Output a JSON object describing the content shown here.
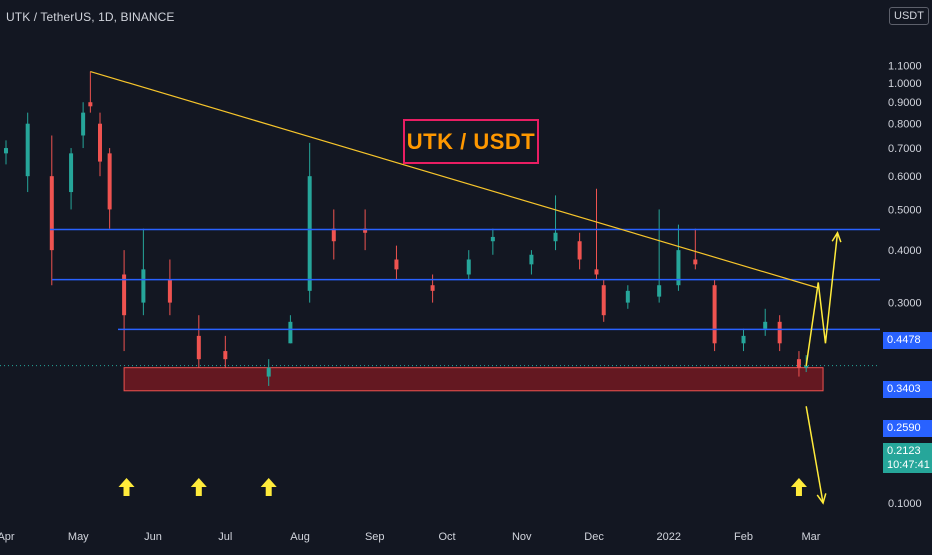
{
  "header": {
    "symbol_title": "UTK / TetherUS, 1D, BINANCE",
    "currency": "USDT"
  },
  "chart_data": {
    "type": "candlestick",
    "title": "UTK / USDT",
    "y_axis": {
      "scale": "log",
      "position": "right",
      "tick_labels": [
        "1.1000",
        "1.0000",
        "0.9000",
        "0.8000",
        "0.7000",
        "0.6000",
        "0.5000",
        "0.4000",
        "0.3000",
        "0.1000"
      ],
      "tick_values": [
        1.1,
        1.0,
        0.9,
        0.8,
        0.7,
        0.6,
        0.5,
        0.4,
        0.3,
        0.1
      ]
    },
    "x_axis": {
      "tick_labels": [
        "Apr",
        "May",
        "Jun",
        "Jul",
        "Aug",
        "Sep",
        "Oct",
        "Nov",
        "Dec",
        "2022",
        "Feb",
        "Mar"
      ],
      "tick_dates": [
        "2021-04-01",
        "2021-05-01",
        "2021-06-01",
        "2021-07-01",
        "2021-08-01",
        "2021-09-01",
        "2021-10-01",
        "2021-11-01",
        "2021-12-01",
        "2022-01-01",
        "2022-02-01",
        "2022-03-01"
      ]
    },
    "last_price": "0.2123",
    "countdown": "10:47:41",
    "colors": {
      "up": "#26a69a",
      "down": "#ef5350",
      "background": "#131722",
      "level_line": "#2962ff",
      "trendline": "#f7c52b",
      "support_zone": "#801922",
      "arrows": "#ffeb3b",
      "label_border": "#e91e63",
      "label_text": "#ff9800"
    },
    "horizontal_levels": [
      {
        "value": 0.4478,
        "label": "0.4478"
      },
      {
        "value": 0.3403,
        "label": "0.3403"
      },
      {
        "value": 0.259,
        "label": "0.2590"
      }
    ],
    "support_zone": {
      "top": 0.21,
      "bottom": 0.185,
      "from": "2021-05-20",
      "to": "2022-03-06"
    },
    "trendline": {
      "from": {
        "date": "2021-05-06",
        "price": 1.065
      },
      "to": {
        "date": "2022-03-04",
        "price": 0.325
      }
    },
    "up_arrow_dates": [
      "2021-05-21",
      "2021-06-20",
      "2021-07-19",
      "2022-02-24"
    ],
    "projection_path": [
      {
        "date": "2022-02-27",
        "price": 0.212
      },
      {
        "date": "2022-03-04",
        "price": 0.335
      },
      {
        "date": "2022-03-07",
        "price": 0.24
      },
      {
        "date": "2022-03-12",
        "price": 0.44
      }
    ],
    "down_projection": [
      {
        "date": "2022-02-27",
        "price": 0.17
      },
      {
        "date": "2022-03-06",
        "price": 0.1
      }
    ],
    "series": [
      {
        "date": "2021-04-01",
        "open": 0.68,
        "high": 0.73,
        "low": 0.64,
        "close": 0.7
      },
      {
        "date": "2021-04-10",
        "open": 0.6,
        "high": 0.85,
        "low": 0.55,
        "close": 0.8
      },
      {
        "date": "2021-04-20",
        "open": 0.6,
        "high": 0.75,
        "low": 0.33,
        "close": 0.4
      },
      {
        "date": "2021-04-28",
        "open": 0.55,
        "high": 0.7,
        "low": 0.5,
        "close": 0.68
      },
      {
        "date": "2021-05-03",
        "open": 0.75,
        "high": 0.9,
        "low": 0.7,
        "close": 0.85
      },
      {
        "date": "2021-05-06",
        "open": 0.9,
        "high": 1.065,
        "low": 0.85,
        "close": 0.88
      },
      {
        "date": "2021-05-10",
        "open": 0.8,
        "high": 0.85,
        "low": 0.6,
        "close": 0.65
      },
      {
        "date": "2021-05-14",
        "open": 0.68,
        "high": 0.7,
        "low": 0.45,
        "close": 0.5
      },
      {
        "date": "2021-05-20",
        "open": 0.35,
        "high": 0.4,
        "low": 0.23,
        "close": 0.28
      },
      {
        "date": "2021-05-28",
        "open": 0.3,
        "high": 0.45,
        "low": 0.28,
        "close": 0.36
      },
      {
        "date": "2021-06-08",
        "open": 0.34,
        "high": 0.38,
        "low": 0.28,
        "close": 0.3
      },
      {
        "date": "2021-06-20",
        "open": 0.25,
        "high": 0.28,
        "low": 0.21,
        "close": 0.22
      },
      {
        "date": "2021-07-01",
        "open": 0.23,
        "high": 0.25,
        "low": 0.21,
        "close": 0.22
      },
      {
        "date": "2021-07-19",
        "open": 0.2,
        "high": 0.22,
        "low": 0.19,
        "close": 0.21
      },
      {
        "date": "2021-07-28",
        "open": 0.24,
        "high": 0.28,
        "low": 0.24,
        "close": 0.27
      },
      {
        "date": "2021-08-05",
        "open": 0.32,
        "high": 0.72,
        "low": 0.3,
        "close": 0.6
      },
      {
        "date": "2021-08-15",
        "open": 0.45,
        "high": 0.5,
        "low": 0.38,
        "close": 0.42
      },
      {
        "date": "2021-08-28",
        "open": 0.45,
        "high": 0.5,
        "low": 0.4,
        "close": 0.44
      },
      {
        "date": "2021-09-10",
        "open": 0.38,
        "high": 0.41,
        "low": 0.34,
        "close": 0.36
      },
      {
        "date": "2021-09-25",
        "open": 0.33,
        "high": 0.35,
        "low": 0.3,
        "close": 0.32
      },
      {
        "date": "2021-10-10",
        "open": 0.35,
        "high": 0.4,
        "low": 0.34,
        "close": 0.38
      },
      {
        "date": "2021-10-20",
        "open": 0.42,
        "high": 0.45,
        "low": 0.39,
        "close": 0.43
      },
      {
        "date": "2021-11-05",
        "open": 0.37,
        "high": 0.4,
        "low": 0.35,
        "close": 0.39
      },
      {
        "date": "2021-11-15",
        "open": 0.42,
        "high": 0.54,
        "low": 0.4,
        "close": 0.44
      },
      {
        "date": "2021-11-25",
        "open": 0.42,
        "high": 0.44,
        "low": 0.36,
        "close": 0.38
      },
      {
        "date": "2021-12-02",
        "open": 0.36,
        "high": 0.56,
        "low": 0.34,
        "close": 0.35
      },
      {
        "date": "2021-12-05",
        "open": 0.33,
        "high": 0.34,
        "low": 0.27,
        "close": 0.28
      },
      {
        "date": "2021-12-15",
        "open": 0.3,
        "high": 0.33,
        "low": 0.29,
        "close": 0.32
      },
      {
        "date": "2021-12-28",
        "open": 0.31,
        "high": 0.5,
        "low": 0.3,
        "close": 0.33
      },
      {
        "date": "2022-01-05",
        "open": 0.33,
        "high": 0.46,
        "low": 0.32,
        "close": 0.4
      },
      {
        "date": "2022-01-12",
        "open": 0.38,
        "high": 0.45,
        "low": 0.36,
        "close": 0.37
      },
      {
        "date": "2022-01-20",
        "open": 0.33,
        "high": 0.34,
        "low": 0.23,
        "close": 0.24
      },
      {
        "date": "2022-02-01",
        "open": 0.24,
        "high": 0.26,
        "low": 0.23,
        "close": 0.25
      },
      {
        "date": "2022-02-10",
        "open": 0.26,
        "high": 0.29,
        "low": 0.25,
        "close": 0.27
      },
      {
        "date": "2022-02-16",
        "open": 0.27,
        "high": 0.28,
        "low": 0.23,
        "close": 0.24
      },
      {
        "date": "2022-02-24",
        "open": 0.22,
        "high": 0.23,
        "low": 0.2,
        "close": 0.21
      },
      {
        "date": "2022-02-27",
        "open": 0.21,
        "high": 0.225,
        "low": 0.205,
        "close": 0.2123
      }
    ]
  }
}
